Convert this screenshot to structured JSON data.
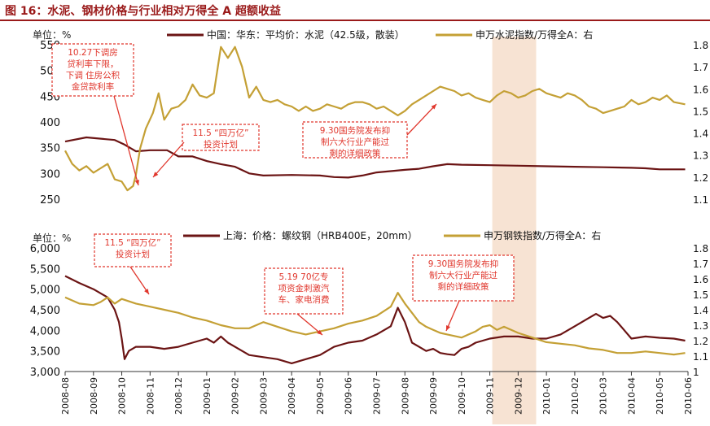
{
  "title": "图 16：水泥、钢材价格与行业相对万得全 A 超额收益",
  "chart_data": [
    {
      "type": "line",
      "unit_label": "单位：%",
      "ylim_left": [
        250,
        550
      ],
      "yticks_left": [
        "250",
        "300",
        "350",
        "400",
        "450",
        "500",
        "550"
      ],
      "ylim_right": [
        1.1,
        1.8
      ],
      "yticks_right": [
        "1.1",
        "1.2",
        "1.3",
        "1.4",
        "1.5",
        "1.6",
        "1.7",
        "1.8"
      ],
      "series": [
        {
          "name": "中国：华东：平均价：水泥（42.5级，散装）",
          "axis": "left",
          "color": "#6b1414",
          "points": [
            [
              0,
              362
            ],
            [
              1.5,
              370
            ],
            [
              3.5,
              365
            ],
            [
              4.2,
              356
            ],
            [
              5,
              343
            ],
            [
              6,
              345
            ],
            [
              7.2,
              345
            ],
            [
              8,
              333
            ],
            [
              9,
              333
            ],
            [
              10,
              324
            ],
            [
              11,
              318
            ],
            [
              12,
              313
            ],
            [
              13,
              300
            ],
            [
              14,
              296
            ],
            [
              16,
              297
            ],
            [
              18,
              296
            ],
            [
              19,
              293
            ],
            [
              20,
              292
            ],
            [
              21,
              296
            ],
            [
              22,
              302
            ],
            [
              24,
              307
            ],
            [
              25,
              309
            ],
            [
              26,
              314
            ],
            [
              27,
              318
            ],
            [
              28,
              317
            ],
            [
              30,
              316
            ],
            [
              32,
              315
            ],
            [
              34,
              314
            ],
            [
              36,
              313
            ],
            [
              38,
              312
            ],
            [
              40,
              311
            ],
            [
              41,
              310
            ],
            [
              42,
              308
            ],
            [
              43.8,
              308
            ]
          ]
        },
        {
          "name": "申万水泥指数/万得全A：右",
          "axis": "right",
          "color": "#c4a035",
          "points": [
            [
              0,
              1.32
            ],
            [
              0.5,
              1.26
            ],
            [
              1,
              1.23
            ],
            [
              1.5,
              1.25
            ],
            [
              2,
              1.22
            ],
            [
              2.5,
              1.24
            ],
            [
              3,
              1.26
            ],
            [
              3.5,
              1.19
            ],
            [
              4,
              1.18
            ],
            [
              4.4,
              1.14
            ],
            [
              4.8,
              1.16
            ],
            [
              5,
              1.21
            ],
            [
              5.3,
              1.33
            ],
            [
              5.7,
              1.42
            ],
            [
              6.2,
              1.49
            ],
            [
              6.6,
              1.58
            ],
            [
              7,
              1.46
            ],
            [
              7.5,
              1.51
            ],
            [
              8,
              1.52
            ],
            [
              8.5,
              1.55
            ],
            [
              9,
              1.62
            ],
            [
              9.5,
              1.57
            ],
            [
              10,
              1.56
            ],
            [
              10.5,
              1.58
            ],
            [
              11,
              1.79
            ],
            [
              11.5,
              1.74
            ],
            [
              12,
              1.79
            ],
            [
              12.5,
              1.7
            ],
            [
              13,
              1.56
            ],
            [
              13.5,
              1.61
            ],
            [
              14,
              1.55
            ],
            [
              14.5,
              1.54
            ],
            [
              15,
              1.55
            ],
            [
              15.5,
              1.53
            ],
            [
              16,
              1.52
            ],
            [
              16.5,
              1.5
            ],
            [
              17,
              1.52
            ],
            [
              17.5,
              1.5
            ],
            [
              18,
              1.51
            ],
            [
              18.5,
              1.53
            ],
            [
              19,
              1.52
            ],
            [
              19.5,
              1.51
            ],
            [
              20,
              1.53
            ],
            [
              20.5,
              1.54
            ],
            [
              21,
              1.54
            ],
            [
              21.5,
              1.53
            ],
            [
              22,
              1.51
            ],
            [
              22.5,
              1.52
            ],
            [
              23,
              1.5
            ],
            [
              23.5,
              1.48
            ],
            [
              24,
              1.5
            ],
            [
              24.5,
              1.53
            ],
            [
              25,
              1.55
            ],
            [
              25.5,
              1.57
            ],
            [
              26,
              1.59
            ],
            [
              26.5,
              1.61
            ],
            [
              27,
              1.6
            ],
            [
              27.5,
              1.59
            ],
            [
              28,
              1.57
            ],
            [
              28.5,
              1.58
            ],
            [
              29,
              1.56
            ],
            [
              29.5,
              1.55
            ],
            [
              30,
              1.54
            ],
            [
              30.5,
              1.57
            ],
            [
              31,
              1.59
            ],
            [
              31.5,
              1.58
            ],
            [
              32,
              1.56
            ],
            [
              32.5,
              1.57
            ],
            [
              33,
              1.59
            ],
            [
              33.5,
              1.6
            ],
            [
              34,
              1.58
            ],
            [
              34.5,
              1.57
            ],
            [
              35,
              1.56
            ],
            [
              35.5,
              1.58
            ],
            [
              36,
              1.57
            ],
            [
              36.5,
              1.55
            ],
            [
              37,
              1.52
            ],
            [
              37.5,
              1.51
            ],
            [
              38,
              1.49
            ],
            [
              38.5,
              1.5
            ],
            [
              39,
              1.51
            ],
            [
              39.5,
              1.52
            ],
            [
              40,
              1.55
            ],
            [
              40.5,
              1.53
            ],
            [
              41,
              1.54
            ],
            [
              41.5,
              1.56
            ],
            [
              42,
              1.55
            ],
            [
              42.5,
              1.57
            ],
            [
              43,
              1.54
            ],
            [
              43.8,
              1.53
            ]
          ]
        }
      ],
      "annotations": [
        {
          "text_lines": [
            "10.27下调房",
            "贷利率下限，",
            "下调 住房公积",
            "金贷款利率"
          ]
        },
        {
          "text_lines": [
            "11.5 “四万亿”",
            "投资计划"
          ]
        },
        {
          "text_lines": [
            "9.30国务院发布抑",
            "制六大行业产能过",
            "剩的详细政策"
          ]
        }
      ]
    },
    {
      "type": "line",
      "unit_label": "单位：%",
      "ylim_left": [
        3000,
        6000
      ],
      "yticks_left": [
        "3,000",
        "3,500",
        "4,000",
        "4,500",
        "5,000",
        "5,500",
        "6,000"
      ],
      "ylim_right": [
        1.0,
        1.8
      ],
      "yticks_right": [
        "1",
        "1.1",
        "1.2",
        "1.3",
        "1.4",
        "1.5",
        "1.6",
        "1.7",
        "1.8"
      ],
      "series": [
        {
          "name": "上海：价格：螺纹钢（HRB400E，20mm）",
          "axis": "left",
          "color": "#6b1414",
          "points": [
            [
              0,
              5320
            ],
            [
              1,
              5150
            ],
            [
              2,
              5000
            ],
            [
              3,
              4800
            ],
            [
              3.5,
              4500
            ],
            [
              3.8,
              4200
            ],
            [
              4,
              3800
            ],
            [
              4.2,
              3300
            ],
            [
              4.5,
              3500
            ],
            [
              5,
              3600
            ],
            [
              6,
              3600
            ],
            [
              7,
              3550
            ],
            [
              8,
              3600
            ],
            [
              9,
              3700
            ],
            [
              10,
              3800
            ],
            [
              10.5,
              3700
            ],
            [
              11,
              3850
            ],
            [
              11.5,
              3700
            ],
            [
              12,
              3600
            ],
            [
              13,
              3400
            ],
            [
              14,
              3350
            ],
            [
              15,
              3300
            ],
            [
              16,
              3200
            ],
            [
              17,
              3300
            ],
            [
              18,
              3400
            ],
            [
              19,
              3600
            ],
            [
              20,
              3700
            ],
            [
              21,
              3750
            ],
            [
              22,
              3900
            ],
            [
              23,
              4100
            ],
            [
              23.5,
              4550
            ],
            [
              24,
              4200
            ],
            [
              24.5,
              3700
            ],
            [
              25,
              3600
            ],
            [
              25.5,
              3500
            ],
            [
              26,
              3550
            ],
            [
              26.5,
              3450
            ],
            [
              27,
              3420
            ],
            [
              27.5,
              3400
            ],
            [
              28,
              3550
            ],
            [
              28.5,
              3600
            ],
            [
              29,
              3700
            ],
            [
              30,
              3800
            ],
            [
              31,
              3850
            ],
            [
              32,
              3850
            ],
            [
              33,
              3800
            ],
            [
              34,
              3800
            ],
            [
              35,
              3900
            ],
            [
              36,
              4100
            ],
            [
              37,
              4300
            ],
            [
              37.5,
              4400
            ],
            [
              38,
              4300
            ],
            [
              38.5,
              4350
            ],
            [
              39,
              4200
            ],
            [
              39.5,
              4000
            ],
            [
              40,
              3800
            ],
            [
              41,
              3850
            ],
            [
              42,
              3820
            ],
            [
              43,
              3800
            ],
            [
              43.8,
              3750
            ]
          ]
        },
        {
          "name": "申万钢铁指数/万得全A：右",
          "axis": "right",
          "color": "#c4a035",
          "points": [
            [
              0,
              1.48
            ],
            [
              1,
              1.44
            ],
            [
              2,
              1.43
            ],
            [
              2.5,
              1.45
            ],
            [
              3,
              1.48
            ],
            [
              3.5,
              1.44
            ],
            [
              4,
              1.47
            ],
            [
              5,
              1.44
            ],
            [
              6,
              1.42
            ],
            [
              7,
              1.4
            ],
            [
              8,
              1.38
            ],
            [
              9,
              1.35
            ],
            [
              10,
              1.33
            ],
            [
              11,
              1.3
            ],
            [
              12,
              1.28
            ],
            [
              13,
              1.28
            ],
            [
              14,
              1.32
            ],
            [
              15,
              1.29
            ],
            [
              16,
              1.26
            ],
            [
              17,
              1.24
            ],
            [
              18,
              1.26
            ],
            [
              19,
              1.28
            ],
            [
              20,
              1.31
            ],
            [
              21,
              1.33
            ],
            [
              22,
              1.36
            ],
            [
              23,
              1.42
            ],
            [
              23.5,
              1.51
            ],
            [
              24,
              1.44
            ],
            [
              24.5,
              1.38
            ],
            [
              25,
              1.32
            ],
            [
              25.5,
              1.29
            ],
            [
              26,
              1.27
            ],
            [
              26.5,
              1.25
            ],
            [
              27,
              1.24
            ],
            [
              27.5,
              1.23
            ],
            [
              28,
              1.22
            ],
            [
              28.5,
              1.24
            ],
            [
              29,
              1.26
            ],
            [
              29.5,
              1.29
            ],
            [
              30,
              1.3
            ],
            [
              30.5,
              1.27
            ],
            [
              31,
              1.29
            ],
            [
              32,
              1.25
            ],
            [
              33,
              1.22
            ],
            [
              34,
              1.19
            ],
            [
              35,
              1.18
            ],
            [
              36,
              1.17
            ],
            [
              37,
              1.15
            ],
            [
              38,
              1.14
            ],
            [
              39,
              1.12
            ],
            [
              40,
              1.12
            ],
            [
              41,
              1.13
            ],
            [
              42,
              1.12
            ],
            [
              43,
              1.11
            ],
            [
              43.8,
              1.12
            ]
          ]
        }
      ],
      "annotations": [
        {
          "text_lines": [
            "11.5 “四万亿”",
            "投资计划"
          ]
        },
        {
          "text_lines": [
            "5.19 70亿专",
            "项资金刺激汽",
            "车、家电消费"
          ]
        },
        {
          "text_lines": [
            "9.30国务院发布抑",
            "制六大行业产能过",
            "剩的详细政策"
          ]
        }
      ]
    }
  ],
  "x_tick_labels": [
    "2008-08",
    "2008-09",
    "2008-10",
    "2008-11",
    "2008-12",
    "2009-01",
    "2009-02",
    "2009-03",
    "2009-04",
    "2009-05",
    "2009-06",
    "2009-07",
    "2009-08",
    "2009-09",
    "2009-10",
    "2009-11",
    "2009-12",
    "2010-01",
    "2010-02",
    "2010-03",
    "2010-04",
    "2010-05",
    "2010-06"
  ],
  "highlight_period": [
    "2009-11",
    "2009-12"
  ],
  "colors": {
    "dark": "#6b1414",
    "gold": "#c4a035",
    "annotation": "#e0362c",
    "title": "#9a1a1a",
    "highlight": "#f7e3d3"
  }
}
